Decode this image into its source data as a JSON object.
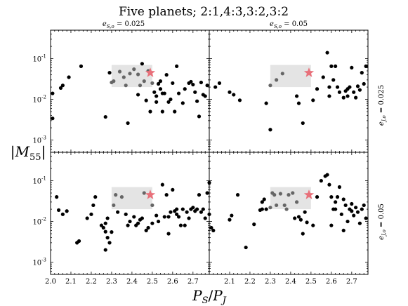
{
  "chart_data": {
    "type": "scatter",
    "title": "Five planets; 2:1,4:3,3:2,3:2",
    "xlabel": "P_S/P_J",
    "ylabel": "|M_55|",
    "xlim": [
      2.0,
      2.78
    ],
    "ylim": [
      0.0005,
      0.5
    ],
    "y_scale": "log",
    "grid": false,
    "x_ticks": [
      2.0,
      2.1,
      2.2,
      2.3,
      2.4,
      2.5,
      2.6,
      2.7
    ],
    "x_tick_labels_left": [
      "2.0",
      "2.1",
      "2.2",
      "2.3",
      "2.4",
      "2.5",
      "2.6",
      "2.7"
    ],
    "x_tick_labels_right": [
      "",
      "2.1",
      "2.2",
      "2.3",
      "2.4",
      "2.5",
      "2.6",
      "2.7"
    ],
    "y_ticks": [
      0.001,
      0.01,
      0.1
    ],
    "y_tick_labels": [
      "10^-3",
      "10^-2",
      "10^-1"
    ],
    "column_titles": [
      "e_S,o = 0.025",
      "e_S,o = 0.05"
    ],
    "row_labels": [
      "e_J,o = 0.025",
      "e_J,o = 0.05"
    ],
    "highlight_region": {
      "x": [
        2.3,
        2.5
      ],
      "y": [
        0.02,
        0.07
      ],
      "color": "#e4e4e4"
    },
    "star_marker": {
      "x": 2.49,
      "y": 0.045,
      "color": "#e8707a"
    },
    "point_color": "#000000",
    "panels": [
      {
        "row": 0,
        "col": 0,
        "points": [
          [
            2.01,
            0.014
          ],
          [
            2.01,
            0.0034
          ],
          [
            2.05,
            0.019
          ],
          [
            2.06,
            0.022
          ],
          [
            2.09,
            0.035
          ],
          [
            2.15,
            0.065
          ],
          [
            2.27,
            0.0037
          ],
          [
            2.29,
            0.045
          ],
          [
            2.31,
            0.028
          ],
          [
            2.34,
            0.048
          ],
          [
            2.36,
            0.035
          ],
          [
            2.37,
            0.022
          ],
          [
            2.38,
            0.0026
          ],
          [
            2.39,
            0.043
          ],
          [
            2.41,
            0.055
          ],
          [
            2.43,
            0.013
          ],
          [
            2.44,
            0.022
          ],
          [
            2.45,
            0.075
          ],
          [
            2.46,
            0.028
          ],
          [
            2.47,
            0.0094
          ],
          [
            2.48,
            0.05
          ],
          [
            2.5,
            0.025
          ],
          [
            2.51,
            0.015
          ],
          [
            2.52,
            0.012
          ],
          [
            2.53,
            0.024
          ],
          [
            2.54,
            0.028
          ],
          [
            2.54,
            0.018
          ],
          [
            2.55,
            0.014
          ],
          [
            2.55,
            0.005
          ],
          [
            2.56,
            0.014
          ],
          [
            2.57,
            0.04
          ],
          [
            2.58,
            0.0086
          ],
          [
            2.59,
            0.01
          ],
          [
            2.6,
            0.025
          ],
          [
            2.61,
            0.005
          ],
          [
            2.62,
            0.065
          ],
          [
            2.63,
            0.014
          ],
          [
            2.65,
            0.0081
          ],
          [
            2.66,
            0.018
          ],
          [
            2.68,
            0.025
          ],
          [
            2.69,
            0.027
          ],
          [
            2.7,
            0.023
          ],
          [
            2.71,
            0.015
          ],
          [
            2.72,
            0.009
          ],
          [
            2.73,
            0.0038
          ],
          [
            2.74,
            0.026
          ],
          [
            2.75,
            0.013
          ],
          [
            2.76,
            0.012
          ],
          [
            2.77,
            0.022
          ],
          [
            2.3,
            0.026
          ],
          [
            2.43,
            0.041
          ],
          [
            2.52,
            0.0086
          ],
          [
            2.49,
            0.005
          ]
        ]
      },
      {
        "row": 0,
        "col": 1,
        "points": [
          [
            2.03,
            0.02
          ],
          [
            2.05,
            0.025
          ],
          [
            2.1,
            0.015
          ],
          [
            2.12,
            0.013
          ],
          [
            2.15,
            0.0095
          ],
          [
            2.28,
            0.008
          ],
          [
            2.3,
            0.0018
          ],
          [
            2.3,
            0.022
          ],
          [
            2.33,
            0.03
          ],
          [
            2.36,
            0.043
          ],
          [
            2.43,
            0.012
          ],
          [
            2.44,
            0.008
          ],
          [
            2.46,
            0.0026
          ],
          [
            2.51,
            0.0095
          ],
          [
            2.53,
            0.018
          ],
          [
            2.56,
            0.035
          ],
          [
            2.58,
            0.14
          ],
          [
            2.59,
            0.012
          ],
          [
            2.6,
            0.065
          ],
          [
            2.61,
            0.03
          ],
          [
            2.62,
            0.065
          ],
          [
            2.63,
            0.02
          ],
          [
            2.64,
            0.015
          ],
          [
            2.66,
            0.011
          ],
          [
            2.67,
            0.016
          ],
          [
            2.68,
            0.012
          ],
          [
            2.69,
            0.02
          ],
          [
            2.7,
            0.06
          ],
          [
            2.71,
            0.015
          ],
          [
            2.72,
            0.011
          ],
          [
            2.73,
            0.021
          ],
          [
            2.74,
            0.017
          ],
          [
            2.75,
            0.045
          ],
          [
            2.76,
            0.024
          ],
          [
            2.77,
            0.065
          ],
          [
            2.59,
            0.02
          ],
          [
            2.68,
            0.018
          ]
        ]
      },
      {
        "row": 1,
        "col": 0,
        "points": [
          [
            2.03,
            0.04
          ],
          [
            2.04,
            0.019
          ],
          [
            2.06,
            0.015
          ],
          [
            2.08,
            0.018
          ],
          [
            2.13,
            0.003
          ],
          [
            2.14,
            0.0033
          ],
          [
            2.18,
            0.012
          ],
          [
            2.2,
            0.015
          ],
          [
            2.21,
            0.025
          ],
          [
            2.22,
            0.04
          ],
          [
            2.25,
            0.008
          ],
          [
            2.26,
            0.007
          ],
          [
            2.27,
            0.0056
          ],
          [
            2.27,
            0.009
          ],
          [
            2.28,
            0.012
          ],
          [
            2.28,
            0.004
          ],
          [
            2.29,
            0.003
          ],
          [
            2.3,
            0.0055
          ],
          [
            2.31,
            0.025
          ],
          [
            2.32,
            0.045
          ],
          [
            2.33,
            0.017
          ],
          [
            2.35,
            0.04
          ],
          [
            2.37,
            0.015
          ],
          [
            2.38,
            0.008
          ],
          [
            2.39,
            0.01
          ],
          [
            2.41,
            0.013
          ],
          [
            2.42,
            0.008
          ],
          [
            2.43,
            0.009
          ],
          [
            2.44,
            0.011
          ],
          [
            2.45,
            0.012
          ],
          [
            2.46,
            0.05
          ],
          [
            2.47,
            0.006
          ],
          [
            2.48,
            0.007
          ],
          [
            2.5,
            0.009
          ],
          [
            2.5,
            0.025
          ],
          [
            2.52,
            0.014
          ],
          [
            2.53,
            0.01
          ],
          [
            2.55,
            0.08
          ],
          [
            2.57,
            0.045
          ],
          [
            2.58,
            0.013
          ],
          [
            2.59,
            0.017
          ],
          [
            2.6,
            0.06
          ],
          [
            2.61,
            0.018
          ],
          [
            2.62,
            0.02
          ],
          [
            2.63,
            0.013
          ],
          [
            2.64,
            0.008
          ],
          [
            2.65,
            0.02
          ],
          [
            2.66,
            0.008
          ],
          [
            2.67,
            0.017
          ],
          [
            2.68,
            0.012
          ],
          [
            2.69,
            0.02
          ],
          [
            2.7,
            0.022
          ],
          [
            2.71,
            0.018
          ],
          [
            2.72,
            0.02
          ],
          [
            2.73,
            0.045
          ],
          [
            2.74,
            0.017
          ],
          [
            2.75,
            0.02
          ],
          [
            2.76,
            0.012
          ],
          [
            2.77,
            0.05
          ],
          [
            2.78,
            0.09
          ],
          [
            2.56,
            0.013
          ],
          [
            2.58,
            0.005
          ],
          [
            2.27,
            0.002
          ],
          [
            2.62,
            0.015
          ]
        ]
      },
      {
        "row": 1,
        "col": 1,
        "points": [
          [
            2.0,
            0.015
          ],
          [
            2.01,
            0.007
          ],
          [
            2.02,
            0.006
          ],
          [
            2.1,
            0.011
          ],
          [
            2.11,
            0.014
          ],
          [
            2.14,
            0.045
          ],
          [
            2.18,
            0.0023
          ],
          [
            2.22,
            0.0085
          ],
          [
            2.25,
            0.019
          ],
          [
            2.26,
            0.03
          ],
          [
            2.26,
            0.02
          ],
          [
            2.27,
            0.035
          ],
          [
            2.28,
            0.02
          ],
          [
            2.3,
            0.022
          ],
          [
            2.31,
            0.05
          ],
          [
            2.32,
            0.045
          ],
          [
            2.33,
            0.025
          ],
          [
            2.35,
            0.048
          ],
          [
            2.37,
            0.025
          ],
          [
            2.38,
            0.02
          ],
          [
            2.39,
            0.045
          ],
          [
            2.41,
            0.05
          ],
          [
            2.42,
            0.012
          ],
          [
            2.43,
            0.03
          ],
          [
            2.44,
            0.013
          ],
          [
            2.45,
            0.011
          ],
          [
            2.46,
            0.005
          ],
          [
            2.47,
            0.017
          ],
          [
            2.48,
            0.0095
          ],
          [
            2.49,
            0.045
          ],
          [
            2.51,
            0.008
          ],
          [
            2.53,
            0.04
          ],
          [
            2.55,
            0.1
          ],
          [
            2.57,
            0.13
          ],
          [
            2.58,
            0.14
          ],
          [
            2.59,
            0.08
          ],
          [
            2.6,
            0.04
          ],
          [
            2.61,
            0.02
          ],
          [
            2.62,
            0.03
          ],
          [
            2.63,
            0.04
          ],
          [
            2.64,
            0.07
          ],
          [
            2.65,
            0.015
          ],
          [
            2.66,
            0.035
          ],
          [
            2.67,
            0.025
          ],
          [
            2.68,
            0.01
          ],
          [
            2.69,
            0.02
          ],
          [
            2.7,
            0.027
          ],
          [
            2.71,
            0.014
          ],
          [
            2.72,
            0.022
          ],
          [
            2.73,
            0.017
          ],
          [
            2.74,
            0.009
          ],
          [
            2.75,
            0.02
          ],
          [
            2.76,
            0.025
          ],
          [
            2.77,
            0.012
          ],
          [
            2.62,
            0.02
          ],
          [
            2.6,
            0.008
          ],
          [
            2.66,
            0.006
          ],
          [
            2.7,
            0.018
          ]
        ]
      }
    ]
  }
}
